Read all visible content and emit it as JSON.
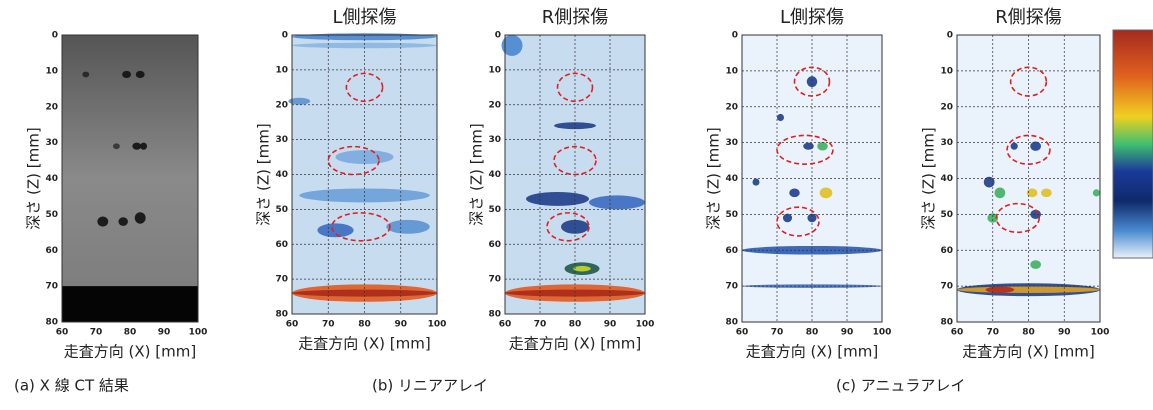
{
  "figure": {
    "panels": [
      {
        "xlabel": "走査方向 (X) [mm]",
        "ylabel": "深さ (Z) [mm]",
        "xticks": [
          60,
          70,
          80,
          90,
          100
        ],
        "yticks": [
          0,
          10,
          20,
          30,
          40,
          50,
          60,
          70,
          80
        ]
      },
      {
        "title": "L側探傷",
        "xlabel": "走査方向 (X) [mm]",
        "ylabel": "深さ (Z) [mm]",
        "xticks": [
          60,
          70,
          80,
          90,
          100
        ],
        "yticks": [
          0,
          10,
          20,
          30,
          40,
          50,
          60,
          70,
          80
        ]
      },
      {
        "title": "R側探傷",
        "xlabel": "走査方向 (X) [mm]",
        "ylabel": "深さ (Z) [mm]",
        "xticks": [
          60,
          70,
          80,
          90,
          100
        ],
        "yticks": [
          0,
          10,
          20,
          30,
          40,
          50,
          60,
          70,
          80
        ]
      },
      {
        "title": "L側探傷",
        "xlabel": "走査方向 (X) [mm]",
        "ylabel": "深さ (Z) [mm]",
        "xticks": [
          60,
          70,
          80,
          90,
          100
        ],
        "yticks": [
          0,
          10,
          20,
          30,
          40,
          50,
          60,
          70,
          80
        ]
      },
      {
        "title": "R側探傷",
        "xlabel": "走査方向 (X) [mm]",
        "ylabel": "深さ (Z) [mm]",
        "xticks": [
          60,
          70,
          80,
          90,
          100
        ],
        "yticks": [
          0,
          10,
          20,
          30,
          40,
          50,
          60,
          70,
          80
        ]
      }
    ],
    "captions": [
      "(a) X 線 CT 結果",
      "(b) リニアアレイ",
      "(c) アニュラアレイ"
    ]
  }
}
